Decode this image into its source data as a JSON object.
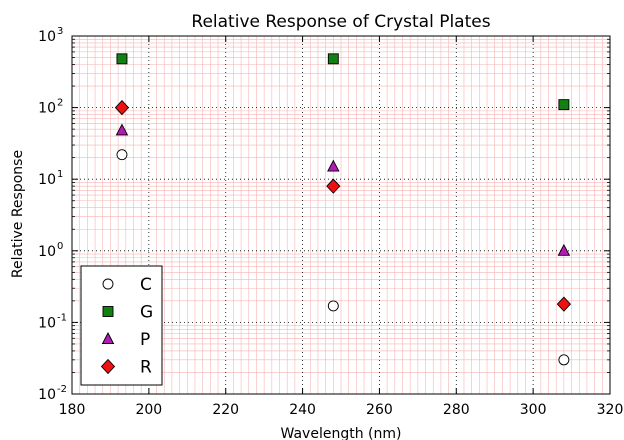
{
  "chart_data": {
    "type": "scatter",
    "title": "Relative Response of Crystal Plates",
    "xlabel": "Wavelength (nm)",
    "ylabel": "Relative Response",
    "xlim": [
      180,
      320
    ],
    "ylim": [
      0.01,
      1000
    ],
    "yscale": "log",
    "x_ticks": [
      180,
      200,
      220,
      240,
      260,
      280,
      300,
      320
    ],
    "y_ticks": [
      {
        "base": "10",
        "exp": "-2",
        "value": 0.01
      },
      {
        "base": "10",
        "exp": "-1",
        "value": 0.1
      },
      {
        "base": "10",
        "exp": "0",
        "value": 1
      },
      {
        "base": "10",
        "exp": "1",
        "value": 10
      },
      {
        "base": "10",
        "exp": "2",
        "value": 100
      },
      {
        "base": "10",
        "exp": "3",
        "value": 1000
      }
    ],
    "grid": true,
    "legend_position": "lower-left",
    "series": [
      {
        "name": "C",
        "marker": "circle",
        "color": "#ffffff",
        "x": [
          193,
          248,
          308
        ],
        "y": [
          22,
          0.17,
          0.03
        ]
      },
      {
        "name": "G",
        "marker": "square",
        "color": "#138013",
        "x": [
          193,
          248,
          308
        ],
        "y": [
          480,
          480,
          110
        ]
      },
      {
        "name": "P",
        "marker": "triangle",
        "color": "#b21cb4",
        "x": [
          193,
          248,
          308
        ],
        "y": [
          48,
          15,
          1.0
        ]
      },
      {
        "name": "R",
        "marker": "diamond",
        "color": "#ee1111",
        "x": [
          193,
          248,
          308
        ],
        "y": [
          100,
          8,
          0.18
        ]
      }
    ]
  }
}
